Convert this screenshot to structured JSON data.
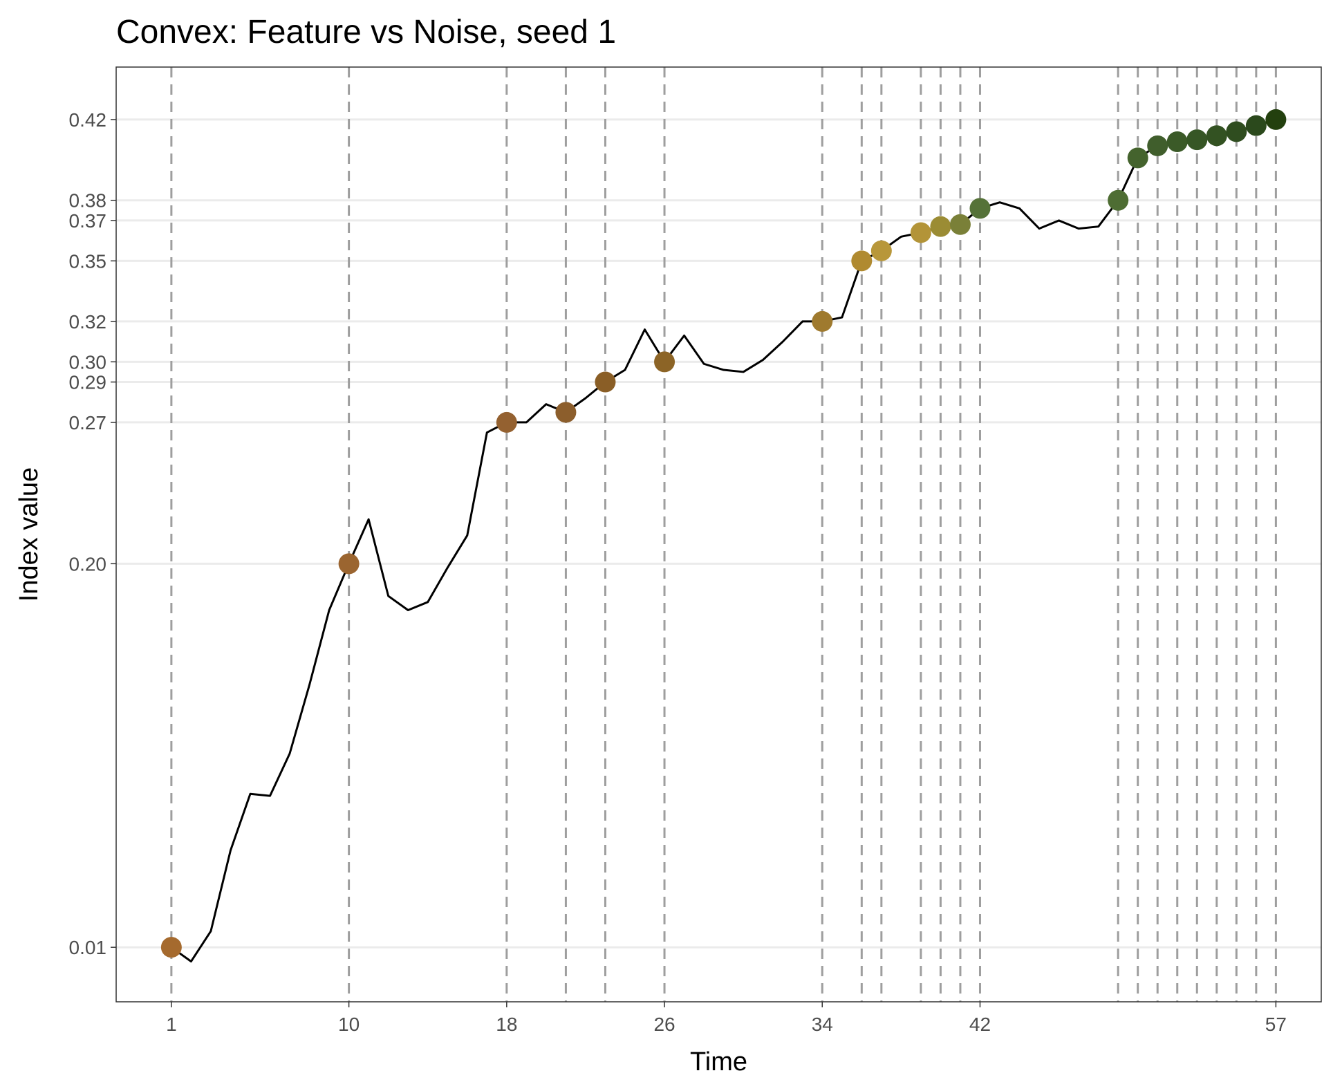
{
  "chart_data": {
    "type": "line",
    "title": "Convex: Feature vs Noise, seed 1",
    "xlabel": "Time",
    "ylabel": "Index value",
    "xlim": [
      -1.8,
      59.3
    ],
    "ylim": [
      -0.017,
      0.446
    ],
    "x_ticks": [
      1,
      10,
      18,
      26,
      34,
      42,
      57
    ],
    "y_ticks": [
      0.01,
      0.2,
      0.27,
      0.29,
      0.3,
      0.32,
      0.35,
      0.37,
      0.38,
      0.42
    ],
    "y_tick_labels": [
      "0.01",
      "0.20",
      "0.27",
      "0.29",
      "0.30",
      "0.32",
      "0.35",
      "0.37",
      "0.38",
      "0.42"
    ],
    "grid": "horizontal at y ticks",
    "vertical_dashed_lines": [
      1,
      10,
      18,
      21,
      23,
      26,
      34,
      36,
      37,
      39,
      40,
      41,
      42,
      49,
      50,
      51,
      52,
      53,
      54,
      55,
      56,
      57
    ],
    "series": [
      {
        "x": [
          1,
          2,
          3,
          4,
          5,
          6,
          7,
          8,
          9,
          10,
          11,
          12,
          13,
          14,
          15,
          16,
          17,
          18,
          19,
          20,
          21,
          22,
          23,
          24,
          25,
          26,
          27,
          28,
          29,
          30,
          31,
          32,
          33,
          34,
          35,
          36,
          37,
          38,
          39,
          40,
          41,
          42,
          43,
          44,
          45,
          46,
          47,
          48,
          49,
          50,
          51,
          52,
          53,
          54,
          55,
          56,
          57
        ],
        "values": [
          0.01,
          0.003,
          0.018,
          0.058,
          0.086,
          0.085,
          0.106,
          0.14,
          0.177,
          0.2,
          0.222,
          0.184,
          0.177,
          0.181,
          0.198,
          0.214,
          0.265,
          0.27,
          0.27,
          0.279,
          0.275,
          0.282,
          0.29,
          0.296,
          0.316,
          0.3,
          0.313,
          0.299,
          0.296,
          0.295,
          0.301,
          0.31,
          0.32,
          0.32,
          0.322,
          0.35,
          0.355,
          0.362,
          0.364,
          0.367,
          0.368,
          0.376,
          0.379,
          0.376,
          0.366,
          0.37,
          0.366,
          0.367,
          0.38,
          0.401,
          0.407,
          0.409,
          0.41,
          0.412,
          0.414,
          0.417,
          0.42
        ]
      }
    ],
    "points": [
      {
        "x": 1,
        "y": 0.01,
        "color": "#a56a2e"
      },
      {
        "x": 10,
        "y": 0.2,
        "color": "#9b6530"
      },
      {
        "x": 18,
        "y": 0.27,
        "color": "#946130"
      },
      {
        "x": 21,
        "y": 0.275,
        "color": "#8c5e2c"
      },
      {
        "x": 23,
        "y": 0.29,
        "color": "#8a5e26"
      },
      {
        "x": 26,
        "y": 0.3,
        "color": "#8c6426"
      },
      {
        "x": 34,
        "y": 0.32,
        "color": "#9f7a2e"
      },
      {
        "x": 36,
        "y": 0.35,
        "color": "#b08a30"
      },
      {
        "x": 37,
        "y": 0.355,
        "color": "#b8973a"
      },
      {
        "x": 39,
        "y": 0.364,
        "color": "#b39438"
      },
      {
        "x": 40,
        "y": 0.367,
        "color": "#9b8c34"
      },
      {
        "x": 41,
        "y": 0.368,
        "color": "#7a8038"
      },
      {
        "x": 42,
        "y": 0.376,
        "color": "#557238"
      },
      {
        "x": 49,
        "y": 0.38,
        "color": "#4e6d33"
      },
      {
        "x": 50,
        "y": 0.401,
        "color": "#44632d"
      },
      {
        "x": 51,
        "y": 0.407,
        "color": "#405e2c"
      },
      {
        "x": 52,
        "y": 0.409,
        "color": "#3b5a28"
      },
      {
        "x": 53,
        "y": 0.41,
        "color": "#365625"
      },
      {
        "x": 54,
        "y": 0.412,
        "color": "#335222"
      },
      {
        "x": 55,
        "y": 0.414,
        "color": "#2f4d1f"
      },
      {
        "x": 56,
        "y": 0.417,
        "color": "#2b491c"
      },
      {
        "x": 57,
        "y": 0.42,
        "color": "#23400e"
      }
    ]
  }
}
